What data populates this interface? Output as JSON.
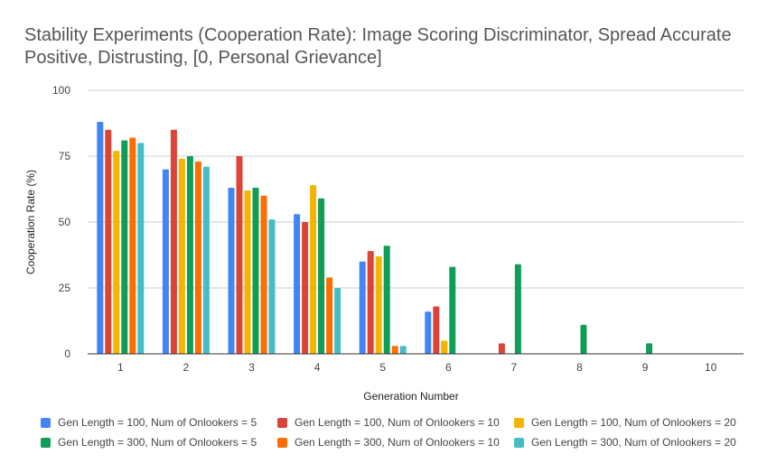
{
  "chart_data": {
    "type": "bar",
    "title": "Stability Experiments (Cooperation Rate): Image Scoring Discriminator, Spread Accurate\nPositive, Distrusting, [0, Personal Grievance]",
    "xlabel": "Generation Number",
    "ylabel": "Cooperation Rate (%)",
    "ylim": [
      0,
      100
    ],
    "yticks": [
      "0",
      "25",
      "50",
      "75",
      "100"
    ],
    "grid": true,
    "legend_position": "bottom",
    "categories": [
      "1",
      "2",
      "3",
      "4",
      "5",
      "6",
      "7",
      "8",
      "9",
      "10"
    ],
    "series": [
      {
        "name": "Gen Length = 100, Num of Onlookers = 5",
        "color": "#4285F4",
        "values": [
          88,
          70,
          63,
          53,
          35,
          16,
          0,
          0,
          0,
          0
        ]
      },
      {
        "name": "Gen Length = 100, Num of Onlookers = 10",
        "color": "#DB4437",
        "values": [
          85,
          85,
          75,
          50,
          39,
          18,
          4,
          0,
          0,
          0
        ]
      },
      {
        "name": "Gen Length = 100, Num of Onlookers = 20",
        "color": "#F4B400",
        "values": [
          77,
          74,
          62,
          64,
          37,
          5,
          0,
          0,
          0,
          0
        ]
      },
      {
        "name": "Gen Length = 300, Num of Onlookers = 5",
        "color": "#0F9D58",
        "values": [
          81,
          75,
          63,
          59,
          41,
          33,
          34,
          11,
          4,
          0
        ]
      },
      {
        "name": "Gen Length = 300, Num of Onlookers = 10",
        "color": "#FF6D00",
        "values": [
          82,
          73,
          60,
          29,
          3,
          0,
          0,
          0,
          0,
          0
        ]
      },
      {
        "name": "Gen Length = 300, Num of Onlookers = 20",
        "color": "#46BDC6",
        "values": [
          80,
          71,
          51,
          25,
          3,
          0,
          0,
          0,
          0,
          0
        ]
      }
    ]
  }
}
